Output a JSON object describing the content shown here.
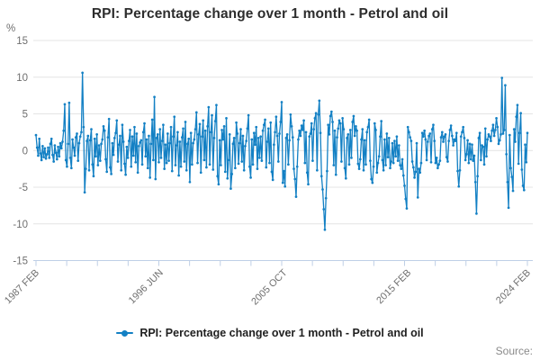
{
  "title": "RPI: Percentage change over 1 month - Petrol and oil",
  "y_unit": "%",
  "source_label": "Source:",
  "legend": {
    "label": "RPI: Percentage change over 1 month - Petrol and oil"
  },
  "colors": {
    "series_line": "#1380C4",
    "gridline": "#E4E4E4",
    "axis_line": "#BFCFE6",
    "tick_text": "#6F6F6F",
    "title_text": "#2D2D2D",
    "legend_text": "#1F1F1F",
    "source_text": "#8A8A8A"
  },
  "chart_data": {
    "type": "line",
    "title": "RPI: Percentage change over 1 month - Petrol and oil",
    "xlabel": "",
    "ylabel": "%",
    "ylim": [
      -15,
      15
    ],
    "grid": true,
    "markers": true,
    "legend_position": "bottom",
    "frequency": "monthly",
    "start": "1987 FEB",
    "end": "2024 FEB",
    "y_ticks": [
      15,
      10,
      5,
      0,
      -5,
      -10,
      -15
    ],
    "x_ticks": [
      {
        "label": "1987 FEB",
        "month": 0
      },
      {
        "label": "1996 JUN",
        "month": 112
      },
      {
        "label": "2005 OCT",
        "month": 224
      },
      {
        "label": "2015 FEB",
        "month": 336
      },
      {
        "label": "2024 FEB",
        "month": 444
      }
    ],
    "series": [
      {
        "name": "RPI: Percentage change over 1 month - Petrol and oil",
        "values": [
          2.1,
          0.4,
          -0.7,
          1.6,
          -0.4,
          -1.3,
          0.6,
          -0.9,
          0.3,
          -1.1,
          -0.5,
          0.4,
          -1.0,
          0.9,
          1.6,
          -0.6,
          -1.5,
          0.7,
          -0.3,
          -1.2,
          0.5,
          -0.8,
          1.0,
          0.3,
          1.2,
          2.7,
          6.3,
          -1.3,
          -2.2,
          0.9,
          6.5,
          -1.0,
          -2.4,
          1.5,
          0.4,
          -0.7,
          1.8,
          2.3,
          -1.4,
          1.0,
          1.9,
          2.5,
          10.6,
          3.2,
          -5.7,
          -2.5,
          1.3,
          2.0,
          -2.7,
          1.4,
          2.9,
          -1.9,
          -3.5,
          1.6,
          -0.8,
          2.2,
          -2.0,
          0.7,
          -1.4,
          0.9,
          1.5,
          3.3,
          2.7,
          -1.2,
          -2.9,
          1.8,
          4.3,
          -2.3,
          -3.2,
          1.0,
          -0.6,
          1.7,
          2.4,
          4.1,
          -1.5,
          0.8,
          2.0,
          -2.7,
          3.5,
          1.2,
          -1.8,
          -3.3,
          0.5,
          -1.0,
          1.3,
          2.8,
          -2.2,
          1.9,
          -0.7,
          3.2,
          -1.6,
          2.3,
          -3.0,
          0.6,
          1.1,
          1.4,
          -1.9,
          2.5,
          3.7,
          -0.8,
          1.5,
          -2.4,
          2.0,
          -3.7,
          0.9,
          4.2,
          -1.3,
          7.3,
          -3.9,
          1.7,
          2.2,
          -1.6,
          2.9,
          -1.0,
          1.3,
          3.5,
          -2.5,
          0.8,
          -1.7,
          2.3,
          -1.4,
          1.0,
          3.2,
          -2.8,
          1.9,
          4.6,
          -2.0,
          0.7,
          2.5,
          -3.4,
          1.2,
          -2.2,
          1.8,
          3.0,
          -1.5,
          3.9,
          -2.7,
          0.9,
          1.6,
          -4.3,
          2.4,
          -1.9,
          1.0,
          1.5,
          2.9,
          5.2,
          -1.7,
          2.2,
          3.6,
          -3.0,
          1.9,
          4.1,
          -1.3,
          2.7,
          -2.3,
          3.3,
          5.9,
          -1.9,
          2.5,
          4.8,
          -2.6,
          1.7,
          4.0,
          6.2,
          -3.5,
          -4.6,
          1.4,
          -2.0,
          2.8,
          1.5,
          3.3,
          -2.9,
          4.4,
          -3.8,
          -1.3,
          2.2,
          -5.2,
          -3.2,
          0.9,
          1.7,
          -2.4,
          3.8,
          2.3,
          -1.8,
          1.0,
          2.9,
          -1.5,
          2.0,
          -2.7,
          0.6,
          1.3,
          3.0,
          4.8,
          -2.2,
          -3.7,
          1.5,
          -1.9,
          2.4,
          0.8,
          3.2,
          -2.5,
          1.7,
          -1.0,
          1.9,
          -1.4,
          2.7,
          3.5,
          4.2,
          -2.3,
          1.2,
          3.0,
          -1.7,
          3.8,
          -2.9,
          -4.0,
          0.8,
          2.5,
          4.6,
          2.0,
          -1.5,
          2.3,
          3.9,
          6.6,
          -4.4,
          -2.8,
          -4.9,
          1.7,
          2.2,
          -1.9,
          1.4,
          4.9,
          3.3,
          1.8,
          -2.5,
          -3.9,
          -6.3,
          -2.2,
          1.5,
          2.7,
          2.0,
          3.4,
          2.8,
          4.1,
          -1.7,
          2.5,
          -3.0,
          -4.6,
          1.9,
          2.3,
          3.7,
          -1.4,
          2.9,
          4.4,
          5.1,
          -2.7,
          4.9,
          6.8,
          2.4,
          -3.5,
          -5.3,
          -8.0,
          -10.8,
          -6.5,
          -2.8,
          3.5,
          2.2,
          4.7,
          5.3,
          3.9,
          -2.0,
          2.7,
          -3.3,
          1.8,
          3.0,
          4.1,
          3.7,
          -1.5,
          4.4,
          2.9,
          -2.4,
          -3.8,
          1.7,
          2.2,
          -1.9,
          2.8,
          -1.0,
          3.9,
          4.7,
          2.0,
          3.3,
          2.7,
          -1.8,
          -2.5,
          -1.2,
          1.5,
          2.9,
          -2.7,
          1.4,
          -1.9,
          2.5,
          3.2,
          4.2,
          -1.4,
          -3.9,
          -4.4,
          -2.2,
          3.7,
          2.8,
          -3.0,
          -1.7,
          -0.8,
          1.9,
          4.0,
          -1.3,
          -2.7,
          1.5,
          -2.0,
          2.3,
          -0.9,
          1.7,
          -2.4,
          -1.5,
          1.0,
          -1.7,
          1.3,
          -0.8,
          1.9,
          -1.4,
          0.7,
          -2.0,
          -2.5,
          -1.2,
          -3.4,
          -4.8,
          -6.6,
          -7.9,
          3.2,
          2.5,
          1.8,
          1.3,
          -1.5,
          -2.3,
          -3.7,
          -2.9,
          1.0,
          -6.4,
          -2.5,
          -3.0,
          -1.7,
          2.4,
          1.9,
          2.7,
          1.5,
          -1.3,
          1.2,
          2.0,
          2.3,
          -1.6,
          2.9,
          3.5,
          1.3,
          -1.7,
          -1.0,
          -2.4,
          -1.9,
          -1.4,
          1.8,
          2.5,
          1.2,
          1.9,
          2.2,
          -0.9,
          -1.5,
          1.3,
          2.8,
          3.4,
          2.0,
          0.7,
          1.5,
          1.3,
          2.4,
          -2.8,
          -4.9,
          -2.7,
          1.9,
          2.5,
          3.2,
          1.7,
          -1.3,
          -0.5,
          1.4,
          -1.7,
          0.9,
          -1.2,
          0.8,
          -1.4,
          -0.7,
          -4.3,
          -8.6,
          -3.5,
          1.7,
          2.4,
          -1.3,
          0.7,
          0.5,
          -1.9,
          3.0,
          -0.8,
          1.5,
          2.2,
          1.9,
          1.3,
          2.7,
          3.5,
          2.0,
          2.8,
          4.4,
          3.2,
          0.9,
          1.4,
          2.2,
          9.9,
          2.3,
          2.8,
          8.9,
          -0.5,
          -4.3,
          -7.8,
          2.1,
          -2.4,
          -3.6,
          -5.5,
          2.9,
          1.2,
          4.6,
          6.2,
          -1.8,
          2.4,
          5.1,
          -2.6,
          -4.8,
          -5.4,
          0.8,
          -1.6,
          2.4
        ]
      }
    ]
  }
}
